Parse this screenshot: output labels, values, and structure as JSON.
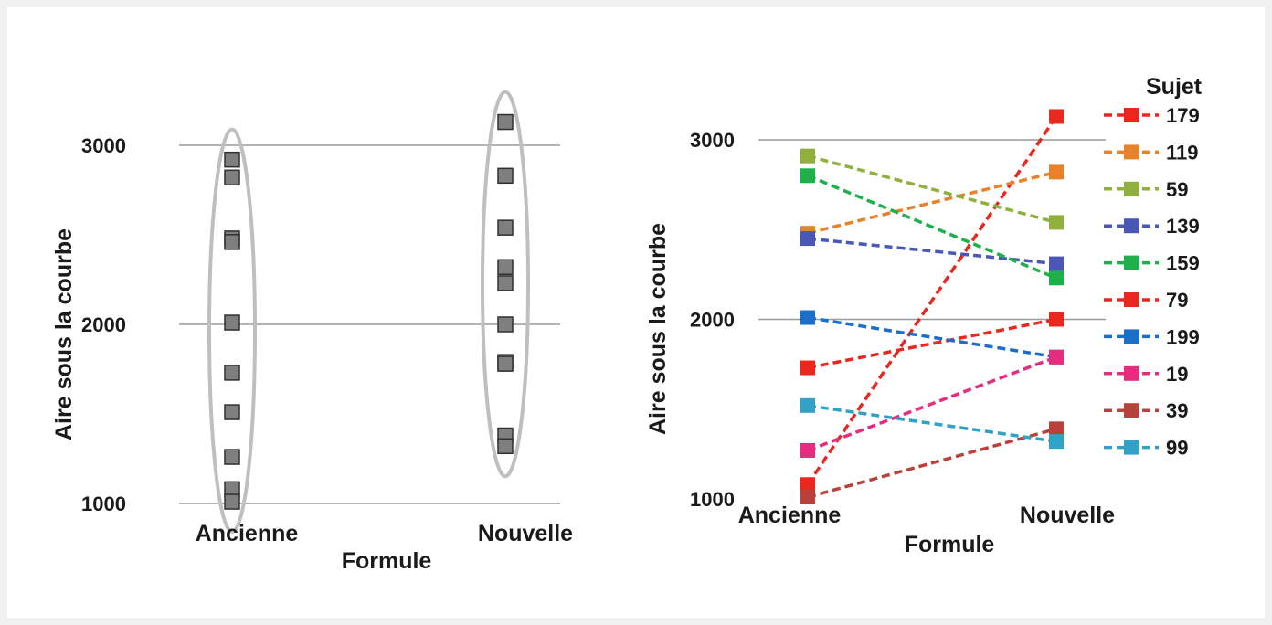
{
  "chart_data": [
    {
      "type": "scatter",
      "title": "",
      "xlabel": "Formule",
      "ylabel": "Aire sous la courbe",
      "categories": [
        "Ancienne",
        "Nouvelle"
      ],
      "y_ticks": [
        "1000",
        "2000",
        "3000"
      ],
      "ylim": [
        1000,
        3000
      ],
      "grid": true,
      "legend": false,
      "marker_color": "#7f7f7f",
      "ellipse_color": "#bfbfbf",
      "series": [
        {
          "category": "Ancienne",
          "values": [
            2920,
            2820,
            2480,
            2460,
            2010,
            1730,
            1510,
            1260,
            1080,
            1010
          ]
        },
        {
          "category": "Nouvelle",
          "values": [
            3130,
            2830,
            2540,
            2320,
            2230,
            2000,
            1790,
            1780,
            1380,
            1320
          ]
        }
      ]
    },
    {
      "type": "line",
      "title": "",
      "xlabel": "Formule",
      "ylabel": "Aire sous la courbe",
      "categories": [
        "Ancienne",
        "Nouvelle"
      ],
      "y_ticks": [
        "1000",
        "2000",
        "3000"
      ],
      "ylim": [
        1000,
        3000
      ],
      "grid": true,
      "legend_title": "Sujet",
      "legend_position": "right",
      "line_style": "dashed",
      "series": [
        {
          "name": "179",
          "color": "#e8281e",
          "values": [
            1080,
            3130
          ]
        },
        {
          "name": "119",
          "color": "#e8822a",
          "values": [
            2480,
            2820
          ]
        },
        {
          "name": "59",
          "color": "#8fb03c",
          "values": [
            2910,
            2540
          ]
        },
        {
          "name": "139",
          "color": "#4a57b6",
          "values": [
            2450,
            2310
          ]
        },
        {
          "name": "159",
          "color": "#1fb04c",
          "values": [
            2800,
            2230
          ]
        },
        {
          "name": "79",
          "color": "#e8281e",
          "values": [
            1730,
            2000
          ]
        },
        {
          "name": "199",
          "color": "#1b6fc8",
          "values": [
            2010,
            1790
          ]
        },
        {
          "name": "19",
          "color": "#e42d7e",
          "values": [
            1270,
            1790
          ]
        },
        {
          "name": "39",
          "color": "#b8413c",
          "values": [
            1010,
            1390
          ]
        },
        {
          "name": "99",
          "color": "#31a2c6",
          "values": [
            1520,
            1320
          ]
        }
      ]
    }
  ]
}
